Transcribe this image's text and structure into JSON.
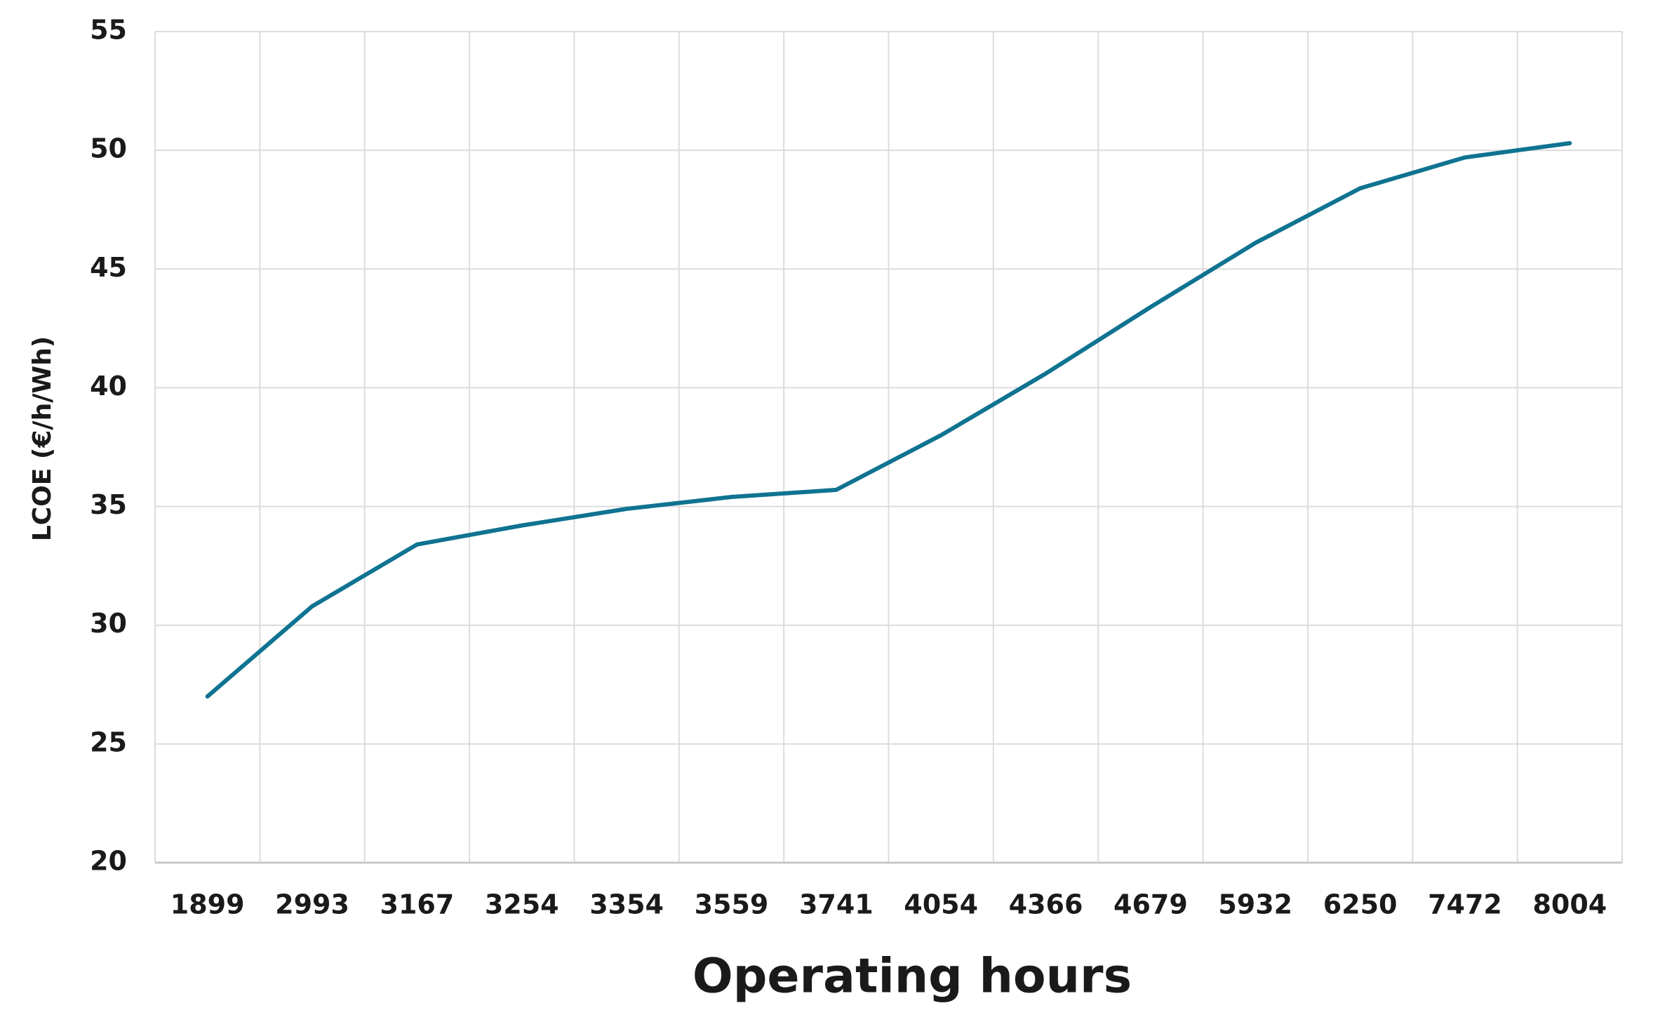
{
  "chart_data": {
    "type": "line",
    "x_label": "Operating hours",
    "y_label": "LCOE (€/h/Wh)",
    "categories": [
      "1899",
      "2993",
      "3167",
      "3254",
      "3354",
      "3559",
      "3741",
      "4054",
      "4366",
      "4679",
      "5932",
      "6250",
      "7472",
      "8004"
    ],
    "series": [
      {
        "name": "LCOE",
        "color": "#0f7391",
        "values": [
          27,
          30.8,
          33.4,
          34.2,
          34.9,
          35.4,
          35.7,
          38,
          40.6,
          43.4,
          46.1,
          48.4,
          49.7,
          50.3
        ]
      }
    ],
    "ylim": [
      20,
      55
    ],
    "yticks": [
      20,
      25,
      30,
      35,
      40,
      45,
      50,
      55
    ],
    "grid": true
  }
}
